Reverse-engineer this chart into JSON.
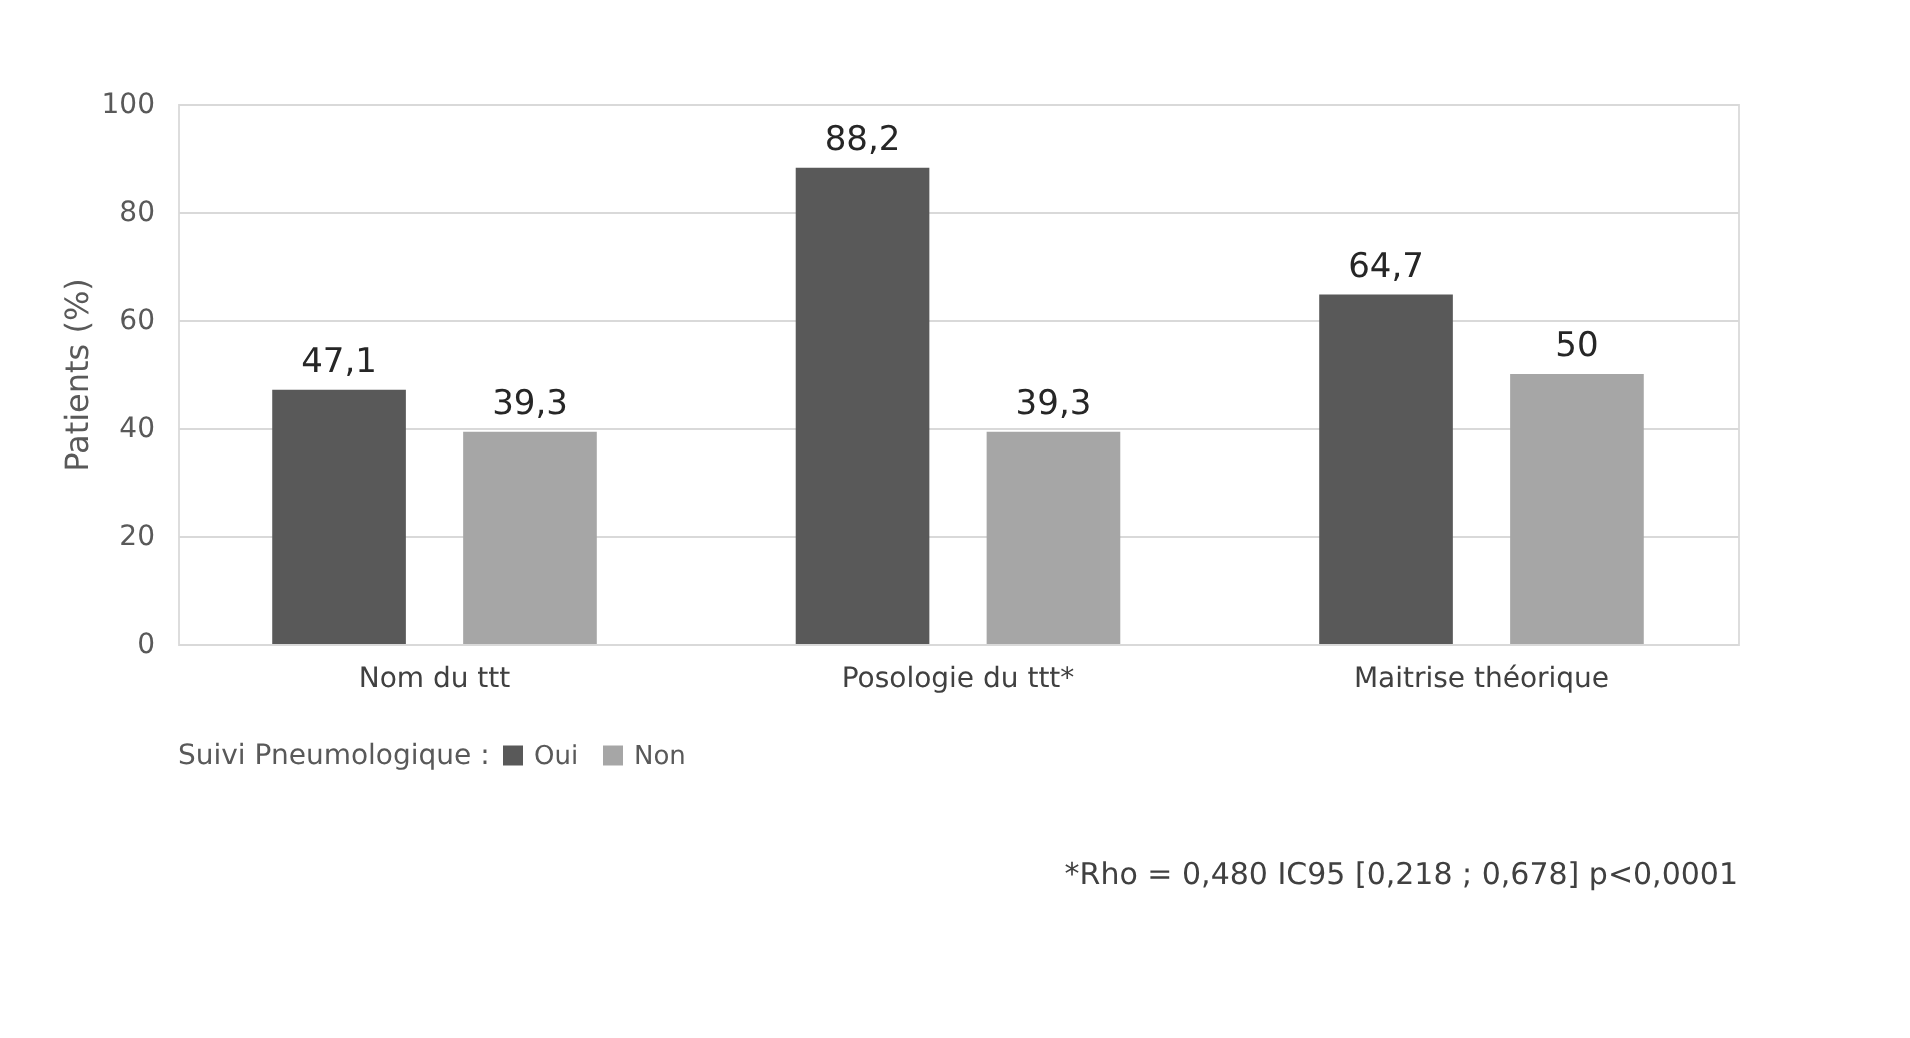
{
  "chart_data": {
    "type": "bar",
    "ylabel": "Patients (%)",
    "categories": [
      "Nom du ttt",
      "Posologie du ttt*",
      "Maitrise théorique"
    ],
    "series": [
      {
        "name": "Oui",
        "color": "#595959",
        "values": [
          47.1,
          88.2,
          64.7
        ],
        "value_labels": [
          "47,1",
          "88,2",
          "64,7"
        ]
      },
      {
        "name": "Non",
        "color": "#a6a6a6",
        "values": [
          39.3,
          39.3,
          50
        ],
        "value_labels": [
          "39,3",
          "39,3",
          "50"
        ]
      }
    ],
    "ylim": [
      0,
      100
    ],
    "yticks": [
      0,
      20,
      40,
      60,
      80,
      100
    ],
    "grid": "y",
    "legend": "bottom",
    "legend_title": "Suivi Pneumologique :",
    "annotations": [
      "*Rho = 0,480 IC95 [0,218 ; 0,678] p<0,0001"
    ]
  }
}
